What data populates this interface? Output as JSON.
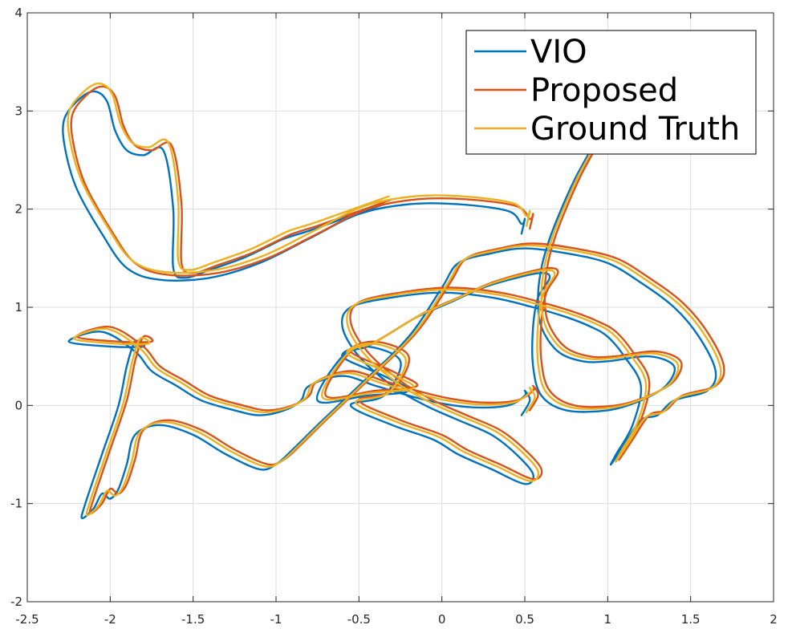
{
  "chart_data": {
    "type": "line",
    "title": "",
    "xlabel": "",
    "ylabel": "",
    "xlim": [
      -2.5,
      2
    ],
    "ylim": [
      -2,
      4
    ],
    "xticks": [
      -2.5,
      -2,
      -1.5,
      -1,
      -0.5,
      0,
      0.5,
      1,
      1.5,
      2
    ],
    "xtick_labels": [
      "-2.5",
      "-2",
      "-1.5",
      "-1",
      "-0.5",
      "0",
      "0.5",
      "1",
      "1.5",
      "2"
    ],
    "yticks": [
      -2,
      -1,
      0,
      1,
      2,
      3,
      4
    ],
    "ytick_labels": [
      "-2",
      "-1",
      "0",
      "1",
      "2",
      "3",
      "4"
    ],
    "grid": true,
    "legend_position": "top-right",
    "series": [
      {
        "name": "VIO",
        "color": "#0072BD",
        "x": [
          0.88,
          0.8,
          0.72,
          0.65,
          0.6,
          0.58,
          0.6,
          0.7,
          0.85,
          1.0,
          1.25,
          1.4,
          1.35,
          1.2,
          1.0,
          0.75,
          0.6,
          0.55,
          0.55,
          0.58,
          0.65,
          0.6,
          0.45,
          0.25,
          0.05,
          -0.15,
          -0.3,
          -0.45,
          -0.6,
          -0.75,
          -0.45,
          -0.2,
          -0.35,
          -0.6,
          -0.45,
          -0.25,
          -0.35,
          -0.55,
          -0.3,
          -0.05,
          0.1,
          0.3,
          0.5,
          0.55,
          0.45,
          0.3,
          0.1,
          -0.1,
          -0.3,
          -0.5,
          -0.6,
          -0.55,
          -0.3,
          0.0,
          0.3,
          0.55,
          0.75,
          0.9,
          1.0,
          1.1,
          1.2,
          1.15,
          1.05,
          1.02,
          1.1,
          1.2,
          1.3,
          1.4,
          1.6,
          1.65,
          1.55,
          1.4,
          1.2,
          1.0,
          0.75,
          0.5,
          0.3,
          0.1,
          0.0,
          -0.2,
          -0.5,
          -0.75,
          -0.9,
          -1.0,
          -1.1,
          -1.3,
          -1.5,
          -1.7,
          -1.85,
          -1.9,
          -1.95,
          -2.0,
          -2.05,
          -2.1,
          -2.17,
          -2.15,
          -2.05,
          -1.95,
          -1.9,
          -1.85,
          -1.8,
          -2.0,
          -2.25,
          -2.05,
          -1.85,
          -1.75,
          -1.6,
          -1.45,
          -1.25,
          -1.1,
          -0.95,
          -0.85,
          -0.8,
          -0.6,
          -0.4,
          -0.2,
          0.0,
          0.2,
          0.4,
          0.5,
          0.5,
          0.53,
          0.48
        ],
        "y": [
          2.55,
          2.3,
          2.0,
          1.7,
          1.4,
          1.1,
          0.8,
          0.55,
          0.45,
          0.45,
          0.5,
          0.4,
          0.2,
          0.05,
          -0.05,
          -0.05,
          0.1,
          0.4,
          0.8,
          1.1,
          1.3,
          1.35,
          1.3,
          1.2,
          1.05,
          0.9,
          0.75,
          0.6,
          0.5,
          0.05,
          0.1,
          0.15,
          0.3,
          0.5,
          0.6,
          0.45,
          0.1,
          0.0,
          -0.2,
          -0.35,
          -0.5,
          -0.65,
          -0.8,
          -0.7,
          -0.5,
          -0.3,
          -0.15,
          0.0,
          0.2,
          0.5,
          0.8,
          1.0,
          1.1,
          1.15,
          1.1,
          1.0,
          0.9,
          0.8,
          0.7,
          0.5,
          0.2,
          -0.2,
          -0.5,
          -0.6,
          -0.4,
          -0.15,
          -0.1,
          0.05,
          0.15,
          0.35,
          0.7,
          1.0,
          1.25,
          1.45,
          1.55,
          1.6,
          1.55,
          1.45,
          1.2,
          0.7,
          0.2,
          -0.2,
          -0.45,
          -0.6,
          -0.65,
          -0.5,
          -0.3,
          -0.2,
          -0.3,
          -0.6,
          -0.85,
          -0.95,
          -0.9,
          -1.05,
          -1.15,
          -1.0,
          -0.5,
          0.0,
          0.4,
          0.65,
          0.6,
          0.6,
          0.65,
          0.75,
          0.55,
          0.35,
          0.2,
          0.05,
          -0.05,
          -0.1,
          -0.05,
          0.05,
          0.2,
          0.3,
          0.2,
          0.1,
          0.02,
          -0.02,
          0.0,
          0.1,
          0.15,
          0.05,
          -0.1
        ],
        "x2": [
          -0.35,
          -0.6,
          -0.8,
          -0.95,
          -1.05,
          -1.2,
          -1.4,
          -1.55,
          -1.62,
          -1.62,
          -1.68,
          -1.8,
          -1.9,
          -1.97,
          -2.02,
          -2.1,
          -2.2,
          -2.28,
          -2.27,
          -2.2,
          -2.05,
          -1.9,
          -1.7,
          -1.4,
          -1.1,
          -0.8,
          -0.5,
          -0.2,
          0.1,
          0.4,
          0.48,
          0.5,
          0.48
        ],
        "y2": [
          2.05,
          1.9,
          1.78,
          1.7,
          1.62,
          1.5,
          1.38,
          1.3,
          1.4,
          2.0,
          2.6,
          2.55,
          2.6,
          2.8,
          3.1,
          3.2,
          3.1,
          2.9,
          2.6,
          2.2,
          1.75,
          1.4,
          1.28,
          1.3,
          1.45,
          1.7,
          1.95,
          2.05,
          2.05,
          1.98,
          1.85,
          1.9,
          1.75
        ]
      },
      {
        "name": "Proposed",
        "color": "#D95319",
        "x": [
          0.92,
          0.84,
          0.76,
          0.69,
          0.64,
          0.62,
          0.64,
          0.74,
          0.89,
          1.04,
          1.29,
          1.44,
          1.4,
          1.25,
          1.05,
          0.8,
          0.65,
          0.6,
          0.6,
          0.63,
          0.7,
          0.65,
          0.5,
          0.3,
          0.1,
          -0.1,
          -0.25,
          -0.4,
          -0.55,
          -0.7,
          -0.4,
          -0.15,
          -0.3,
          -0.55,
          -0.4,
          -0.2,
          -0.3,
          -0.5,
          -0.25,
          0.0,
          0.15,
          0.35,
          0.55,
          0.6,
          0.5,
          0.35,
          0.15,
          -0.05,
          -0.25,
          -0.45,
          -0.55,
          -0.5,
          -0.25,
          0.05,
          0.35,
          0.6,
          0.8,
          0.95,
          1.05,
          1.15,
          1.25,
          1.2,
          1.1,
          1.07,
          1.15,
          1.25,
          1.35,
          1.45,
          1.65,
          1.7,
          1.6,
          1.45,
          1.25,
          1.05,
          0.8,
          0.55,
          0.35,
          0.15,
          0.05,
          -0.15,
          -0.45,
          -0.7,
          -0.85,
          -0.95,
          -1.05,
          -1.25,
          -1.45,
          -1.65,
          -1.8,
          -1.85,
          -1.9,
          -1.95,
          -2.0,
          -2.05,
          -2.12,
          -2.1,
          -2.0,
          -1.9,
          -1.85,
          -1.8,
          -1.75,
          -1.95,
          -2.2,
          -2.0,
          -1.8,
          -1.7,
          -1.55,
          -1.4,
          -1.2,
          -1.05,
          -0.9,
          -0.8,
          -0.75,
          -0.55,
          -0.35,
          -0.15,
          0.05,
          0.25,
          0.45,
          0.55,
          0.55,
          0.58,
          0.53
        ],
        "y": [
          2.6,
          2.35,
          2.05,
          1.75,
          1.45,
          1.15,
          0.85,
          0.6,
          0.5,
          0.5,
          0.55,
          0.45,
          0.25,
          0.1,
          0.0,
          0.0,
          0.15,
          0.45,
          0.85,
          1.15,
          1.35,
          1.4,
          1.35,
          1.25,
          1.1,
          0.95,
          0.8,
          0.65,
          0.55,
          0.1,
          0.15,
          0.2,
          0.35,
          0.55,
          0.65,
          0.5,
          0.15,
          0.05,
          -0.15,
          -0.3,
          -0.45,
          -0.6,
          -0.75,
          -0.65,
          -0.45,
          -0.25,
          -0.1,
          0.05,
          0.25,
          0.55,
          0.85,
          1.05,
          1.15,
          1.2,
          1.15,
          1.05,
          0.95,
          0.85,
          0.75,
          0.55,
          0.25,
          -0.15,
          -0.45,
          -0.55,
          -0.35,
          -0.1,
          -0.05,
          0.1,
          0.2,
          0.4,
          0.75,
          1.05,
          1.3,
          1.5,
          1.6,
          1.65,
          1.6,
          1.5,
          1.25,
          0.75,
          0.25,
          -0.15,
          -0.4,
          -0.55,
          -0.6,
          -0.45,
          -0.25,
          -0.15,
          -0.25,
          -0.55,
          -0.8,
          -0.9,
          -0.85,
          -1.0,
          -1.1,
          -0.95,
          -0.45,
          0.05,
          0.45,
          0.7,
          0.65,
          0.65,
          0.7,
          0.8,
          0.6,
          0.4,
          0.25,
          0.1,
          0.0,
          -0.05,
          0.0,
          0.1,
          0.25,
          0.35,
          0.25,
          0.15,
          0.07,
          0.03,
          0.05,
          0.15,
          0.2,
          0.1,
          -0.05
        ],
        "x2": [
          -0.3,
          -0.55,
          -0.75,
          -0.9,
          -1.0,
          -1.15,
          -1.35,
          -1.5,
          -1.57,
          -1.57,
          -1.63,
          -1.75,
          -1.85,
          -1.92,
          -1.97,
          -2.05,
          -2.15,
          -2.23,
          -2.22,
          -2.15,
          -2.0,
          -1.85,
          -1.65,
          -1.35,
          -1.05,
          -0.75,
          -0.45,
          -0.15,
          0.15,
          0.45,
          0.53,
          0.55,
          0.53
        ],
        "y2": [
          2.1,
          1.95,
          1.83,
          1.75,
          1.67,
          1.55,
          1.43,
          1.35,
          1.45,
          2.05,
          2.65,
          2.6,
          2.65,
          2.85,
          3.15,
          3.25,
          3.15,
          2.95,
          2.65,
          2.25,
          1.8,
          1.45,
          1.33,
          1.35,
          1.5,
          1.75,
          2.0,
          2.1,
          2.1,
          2.03,
          1.9,
          1.95,
          1.8
        ]
      },
      {
        "name": "Ground Truth",
        "color": "#EDB120",
        "x": [
          0.9,
          0.82,
          0.74,
          0.67,
          0.62,
          0.6,
          0.62,
          0.72,
          0.87,
          1.02,
          1.27,
          1.42,
          1.38,
          1.23,
          1.03,
          0.78,
          0.63,
          0.58,
          0.58,
          0.61,
          0.68,
          0.63,
          0.48,
          0.28,
          0.08,
          -0.12,
          -0.27,
          -0.42,
          -0.57,
          -0.72,
          -0.42,
          -0.17,
          -0.32,
          -0.57,
          -0.42,
          -0.22,
          -0.32,
          -0.52,
          -0.27,
          -0.02,
          0.13,
          0.33,
          0.53,
          0.58,
          0.48,
          0.33,
          0.13,
          -0.07,
          -0.27,
          -0.47,
          -0.57,
          -0.52,
          -0.27,
          0.03,
          0.33,
          0.58,
          0.78,
          0.93,
          1.03,
          1.13,
          1.23,
          1.18,
          1.08,
          1.05,
          1.13,
          1.23,
          1.33,
          1.43,
          1.63,
          1.68,
          1.58,
          1.43,
          1.23,
          1.03,
          0.78,
          0.53,
          0.33,
          0.13,
          0.03,
          -0.17,
          -0.47,
          -0.72,
          -0.87,
          -0.97,
          -1.07,
          -1.27,
          -1.47,
          -1.67,
          -1.82,
          -1.87,
          -1.92,
          -1.97,
          -2.02,
          -2.07,
          -2.14,
          -2.12,
          -2.02,
          -1.92,
          -1.87,
          -1.82,
          -1.77,
          -1.97,
          -2.22,
          -2.02,
          -1.82,
          -1.72,
          -1.57,
          -1.42,
          -1.22,
          -1.07,
          -0.92,
          -0.82,
          -0.77,
          -0.57,
          -0.37,
          -0.17,
          0.03,
          0.23,
          0.43,
          0.53,
          0.53,
          0.56,
          0.51
        ],
        "y": [
          2.58,
          2.33,
          2.03,
          1.73,
          1.43,
          1.13,
          0.83,
          0.58,
          0.48,
          0.48,
          0.53,
          0.43,
          0.23,
          0.08,
          -0.02,
          -0.02,
          0.13,
          0.43,
          0.83,
          1.13,
          1.33,
          1.38,
          1.33,
          1.23,
          1.08,
          0.93,
          0.78,
          0.63,
          0.53,
          0.08,
          0.13,
          0.18,
          0.33,
          0.53,
          0.63,
          0.48,
          0.13,
          0.03,
          -0.17,
          -0.32,
          -0.47,
          -0.62,
          -0.77,
          -0.67,
          -0.47,
          -0.27,
          -0.12,
          0.03,
          0.23,
          0.53,
          0.83,
          1.03,
          1.13,
          1.18,
          1.13,
          1.03,
          0.93,
          0.83,
          0.73,
          0.53,
          0.23,
          -0.17,
          -0.47,
          -0.57,
          -0.37,
          -0.12,
          -0.07,
          0.08,
          0.18,
          0.38,
          0.73,
          1.03,
          1.28,
          1.48,
          1.58,
          1.63,
          1.58,
          1.48,
          1.23,
          0.73,
          0.23,
          -0.17,
          -0.42,
          -0.57,
          -0.62,
          -0.47,
          -0.27,
          -0.17,
          -0.27,
          -0.57,
          -0.82,
          -0.92,
          -0.87,
          -1.02,
          -1.12,
          -0.97,
          -0.47,
          0.03,
          0.43,
          0.68,
          0.63,
          0.63,
          0.68,
          0.78,
          0.58,
          0.38,
          0.23,
          0.08,
          -0.02,
          -0.07,
          -0.02,
          0.08,
          0.23,
          0.33,
          0.23,
          0.13,
          0.05,
          0.01,
          0.03,
          0.13,
          0.18,
          0.08,
          -0.07
        ],
        "x2": [
          -0.32,
          -0.57,
          -0.77,
          -0.92,
          -1.02,
          -1.17,
          -1.37,
          -1.52,
          -1.59,
          -1.59,
          -1.65,
          -1.77,
          -1.87,
          -1.94,
          -1.99,
          -2.07,
          -2.17,
          -2.25,
          -2.24,
          -2.17,
          -2.02,
          -1.87,
          -1.67,
          -1.37,
          -1.07,
          -0.77,
          -0.47,
          -0.17,
          0.13,
          0.43,
          0.51,
          0.53,
          0.51
        ],
        "y2": [
          2.13,
          1.98,
          1.86,
          1.78,
          1.7,
          1.58,
          1.46,
          1.38,
          1.48,
          2.08,
          2.68,
          2.63,
          2.68,
          2.88,
          3.18,
          3.28,
          3.18,
          2.98,
          2.68,
          2.28,
          1.83,
          1.48,
          1.36,
          1.38,
          1.53,
          1.78,
          2.03,
          2.13,
          2.13,
          2.06,
          1.93,
          1.98,
          1.83
        ]
      }
    ]
  }
}
